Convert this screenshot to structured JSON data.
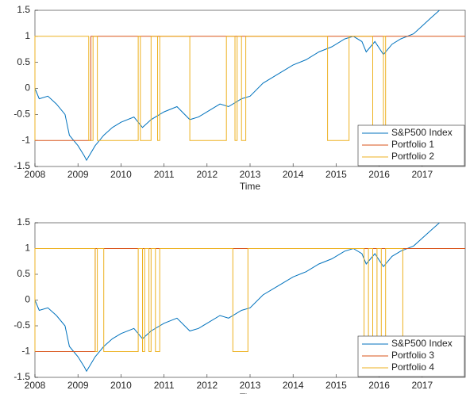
{
  "chart_data": [
    {
      "type": "line",
      "xlabel": "Time",
      "xlim": [
        2008,
        2018
      ],
      "xticks": [
        2008,
        2009,
        2010,
        2011,
        2012,
        2013,
        2014,
        2015,
        2016,
        2017
      ],
      "ylim": [
        -1.5,
        1.5
      ],
      "yticks": [
        -1.5,
        -1,
        -0.5,
        0,
        0.5,
        1,
        1.5
      ],
      "legend": "southeast",
      "series": [
        {
          "name": "S&P500 Index",
          "color": "#0072bd",
          "x": [
            2008.0,
            2008.1,
            2008.3,
            2008.5,
            2008.7,
            2008.8,
            2008.9,
            2009.0,
            2009.15,
            2009.2,
            2009.4,
            2009.6,
            2009.8,
            2010.0,
            2010.3,
            2010.5,
            2010.7,
            2011.0,
            2011.3,
            2011.6,
            2011.8,
            2012.0,
            2012.3,
            2012.5,
            2012.8,
            2013.0,
            2013.3,
            2013.6,
            2014.0,
            2014.3,
            2014.6,
            2014.9,
            2015.2,
            2015.4,
            2015.6,
            2015.7,
            2015.9,
            2016.1,
            2016.3,
            2016.5,
            2016.8,
            2017.0,
            2017.2,
            2017.4
          ],
          "values": [
            0,
            -0.2,
            -0.15,
            -0.3,
            -0.5,
            -0.9,
            -1.0,
            -1.1,
            -1.3,
            -1.38,
            -1.1,
            -0.9,
            -0.75,
            -0.65,
            -0.55,
            -0.75,
            -0.6,
            -0.45,
            -0.35,
            -0.6,
            -0.55,
            -0.45,
            -0.3,
            -0.35,
            -0.2,
            -0.15,
            0.1,
            0.25,
            0.45,
            0.55,
            0.7,
            0.8,
            0.95,
            1.0,
            0.9,
            0.7,
            0.9,
            0.65,
            0.85,
            0.95,
            1.05,
            1.2,
            1.35,
            1.5
          ]
        },
        {
          "name": "Portfolio 1",
          "color": "#d95319",
          "x": [
            2008,
            2009.3,
            2009.3,
            2018
          ],
          "values": [
            -1,
            -1,
            1,
            1
          ]
        },
        {
          "name": "Portfolio 2",
          "color": "#edb120",
          "x": [
            2008,
            2008,
            2009.25,
            2009.25,
            2009.35,
            2009.35,
            2009.45,
            2009.45,
            2010.4,
            2010.4,
            2010.45,
            2010.45,
            2010.7,
            2010.7,
            2010.85,
            2010.85,
            2010.9,
            2010.9,
            2011.6,
            2011.6,
            2012.45,
            2012.45,
            2012.65,
            2012.65,
            2012.7,
            2012.7,
            2012.8,
            2012.8,
            2012.9,
            2012.9,
            2014.8,
            2014.8,
            2015.3,
            2015.3,
            2015.85,
            2015.85,
            2016.1,
            2016.1,
            2016.15,
            2016.15
          ],
          "values": [
            -1,
            1,
            1,
            -1,
            -1,
            1,
            1,
            -1,
            -1,
            1,
            1,
            -1,
            -1,
            1,
            1,
            -1,
            -1,
            1,
            1,
            -1,
            -1,
            1,
            1,
            -1,
            -1,
            1,
            1,
            -1,
            -1,
            1,
            1,
            -1,
            -1,
            1,
            1,
            -1,
            -1,
            1,
            1,
            -1
          ]
        }
      ]
    },
    {
      "type": "line",
      "xlabel": "Time",
      "xlim": [
        2008,
        2018
      ],
      "xticks": [
        2008,
        2009,
        2010,
        2011,
        2012,
        2013,
        2014,
        2015,
        2016,
        2017
      ],
      "ylim": [
        -1.5,
        1.5
      ],
      "yticks": [
        -1.5,
        -1,
        -0.5,
        0,
        0.5,
        1,
        1.5
      ],
      "legend": "southeast",
      "series": [
        {
          "name": "S&P500 Index",
          "color": "#0072bd",
          "x": [
            2008.0,
            2008.1,
            2008.3,
            2008.5,
            2008.7,
            2008.8,
            2008.9,
            2009.0,
            2009.15,
            2009.2,
            2009.4,
            2009.6,
            2009.8,
            2010.0,
            2010.3,
            2010.5,
            2010.7,
            2011.0,
            2011.3,
            2011.6,
            2011.8,
            2012.0,
            2012.3,
            2012.5,
            2012.8,
            2013.0,
            2013.3,
            2013.6,
            2014.0,
            2014.3,
            2014.6,
            2014.9,
            2015.2,
            2015.4,
            2015.6,
            2015.7,
            2015.9,
            2016.1,
            2016.3,
            2016.5,
            2016.8,
            2017.0,
            2017.2,
            2017.4
          ],
          "values": [
            0,
            -0.2,
            -0.15,
            -0.3,
            -0.5,
            -0.9,
            -1.0,
            -1.1,
            -1.3,
            -1.38,
            -1.1,
            -0.9,
            -0.75,
            -0.65,
            -0.55,
            -0.75,
            -0.6,
            -0.45,
            -0.35,
            -0.6,
            -0.55,
            -0.45,
            -0.3,
            -0.35,
            -0.2,
            -0.15,
            0.1,
            0.25,
            0.45,
            0.55,
            0.7,
            0.8,
            0.95,
            1.0,
            0.9,
            0.7,
            0.9,
            0.65,
            0.85,
            0.95,
            1.05,
            1.2,
            1.35,
            1.5
          ]
        },
        {
          "name": "Portfolio 3",
          "color": "#d95319",
          "x": [
            2008,
            2009.4,
            2009.4,
            2018
          ],
          "values": [
            -1,
            -1,
            1,
            1
          ]
        },
        {
          "name": "Portfolio 4",
          "color": "#edb120",
          "x": [
            2008,
            2008,
            2009.4,
            2009.4,
            2009.45,
            2009.45,
            2009.6,
            2009.6,
            2010.4,
            2010.4,
            2010.5,
            2010.5,
            2010.55,
            2010.55,
            2010.65,
            2010.65,
            2010.7,
            2010.7,
            2010.8,
            2010.8,
            2010.9,
            2010.9,
            2012.6,
            2012.6,
            2012.95,
            2012.95,
            2015.65,
            2015.65,
            2015.75,
            2015.75,
            2015.85,
            2015.85,
            2015.95,
            2015.95,
            2016.05,
            2016.05,
            2016.15,
            2016.15,
            2016.55,
            2016.55
          ],
          "values": [
            -1,
            1,
            1,
            -1,
            -1,
            1,
            1,
            -1,
            -1,
            1,
            1,
            -1,
            -1,
            1,
            1,
            -1,
            -1,
            1,
            1,
            -1,
            -1,
            1,
            1,
            -1,
            -1,
            1,
            1,
            -1,
            -1,
            1,
            1,
            -1,
            -1,
            1,
            1,
            -1,
            -1,
            1,
            1,
            -1
          ]
        }
      ]
    }
  ]
}
